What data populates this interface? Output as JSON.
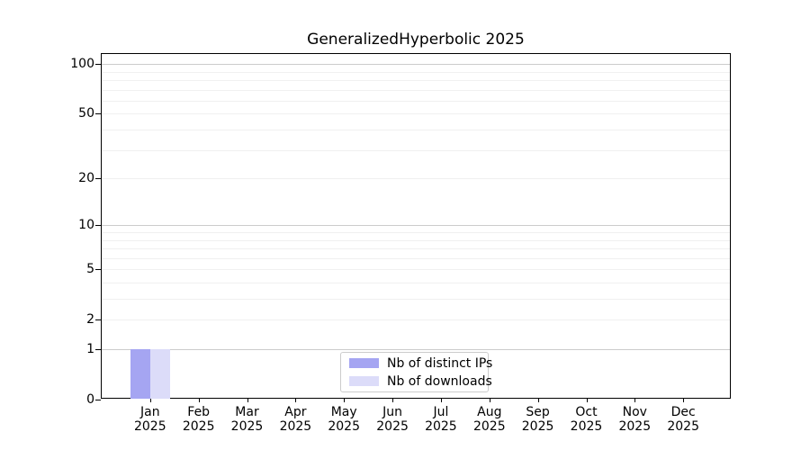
{
  "title": "GeneralizedHyperbolic 2025",
  "chart_data": {
    "type": "bar",
    "title": "GeneralizedHyperbolic 2025",
    "categories": [
      {
        "month": "Jan",
        "year": "2025"
      },
      {
        "month": "Feb",
        "year": "2025"
      },
      {
        "month": "Mar",
        "year": "2025"
      },
      {
        "month": "Apr",
        "year": "2025"
      },
      {
        "month": "May",
        "year": "2025"
      },
      {
        "month": "Jun",
        "year": "2025"
      },
      {
        "month": "Jul",
        "year": "2025"
      },
      {
        "month": "Aug",
        "year": "2025"
      },
      {
        "month": "Sep",
        "year": "2025"
      },
      {
        "month": "Oct",
        "year": "2025"
      },
      {
        "month": "Nov",
        "year": "2025"
      },
      {
        "month": "Dec",
        "year": "2025"
      }
    ],
    "series": [
      {
        "name": "Nb of distinct IPs",
        "color": "#a5a5f2",
        "values": [
          1,
          0,
          0,
          0,
          0,
          0,
          0,
          0,
          0,
          0,
          0,
          0
        ]
      },
      {
        "name": "Nb of downloads",
        "color": "#dcdcf9",
        "values": [
          1,
          0,
          0,
          0,
          0,
          0,
          0,
          0,
          0,
          0,
          0,
          0
        ]
      }
    ],
    "xlabel": "",
    "ylabel": "",
    "yscale": "log10(1+x)",
    "ylim": [
      0,
      115
    ],
    "yticks": [
      0,
      1,
      2,
      5,
      10,
      20,
      50,
      100
    ],
    "major_gridlines": [
      1,
      10,
      100
    ],
    "minor_gridlines": [
      2,
      3,
      4,
      5,
      6,
      7,
      8,
      9,
      20,
      30,
      40,
      50,
      60,
      70,
      80,
      90
    ],
    "grid": "horizontal",
    "legend_position": "lower center (inside plot)"
  },
  "colors": {
    "bar_distinct_ips": "#a5a5f2",
    "bar_downloads": "#dcdcf9",
    "grid_major": "#cccccc",
    "grid_minor": "#f0f0f0",
    "spine": "#000000",
    "background": "#ffffff"
  }
}
